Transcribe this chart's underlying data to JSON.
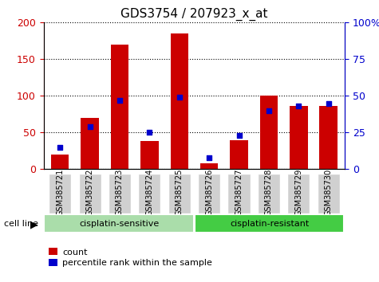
{
  "title": "GDS3754 / 207923_x_at",
  "samples": [
    "GSM385721",
    "GSM385722",
    "GSM385723",
    "GSM385724",
    "GSM385725",
    "GSM385726",
    "GSM385727",
    "GSM385728",
    "GSM385729",
    "GSM385730"
  ],
  "counts": [
    20,
    70,
    170,
    38,
    185,
    8,
    40,
    100,
    86,
    86
  ],
  "percentiles": [
    15,
    29,
    47,
    25,
    49,
    8,
    23,
    40,
    43,
    45
  ],
  "ylim_left": [
    0,
    200
  ],
  "ylim_right": [
    0,
    100
  ],
  "bar_color": "#cc0000",
  "dot_color": "#0000cc",
  "groups": [
    {
      "label": "cisplatin-sensitive",
      "start": 0,
      "end": 5,
      "color": "#aaddaa"
    },
    {
      "label": "cisplatin-resistant",
      "start": 5,
      "end": 10,
      "color": "#44cc44"
    }
  ],
  "cell_line_label": "cell line",
  "legend_count_label": "count",
  "legend_pct_label": "percentile rank within the sample",
  "tick_color_left": "#cc0000",
  "tick_color_right": "#0000cc",
  "grid_color": "#000000",
  "xtick_bg_color": "#d0d0d0",
  "figsize": [
    4.75,
    3.54
  ],
  "dpi": 100
}
